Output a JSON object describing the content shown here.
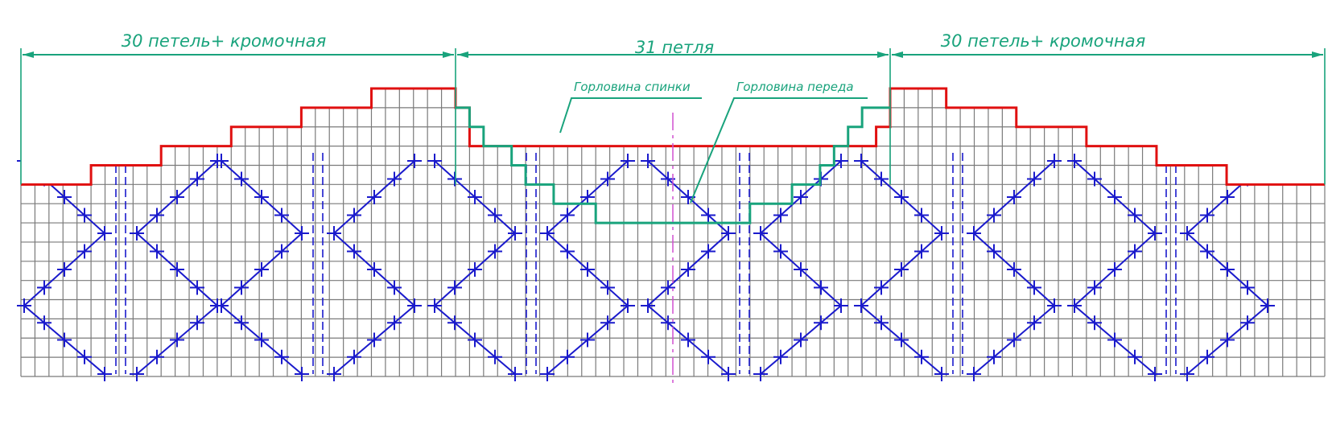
{
  "dimensions": {
    "left": "30 петель+ кромочная",
    "center": "31 петля",
    "right": "30 петель+ кромочная"
  },
  "notes": {
    "back_neckline": "Горловина спинки",
    "front_neckline": "Горловина переда"
  },
  "grid": {
    "columns": 93,
    "rows": 15,
    "segment_columns": [
      31,
      31,
      31
    ]
  },
  "colors": {
    "grid": "#7a7a7a",
    "pattern": "#1a1acc",
    "back_neckline": "#e01010",
    "front_neckline": "#19a37c",
    "dimension": "#19a37c",
    "center_axis": "#d050d0"
  }
}
